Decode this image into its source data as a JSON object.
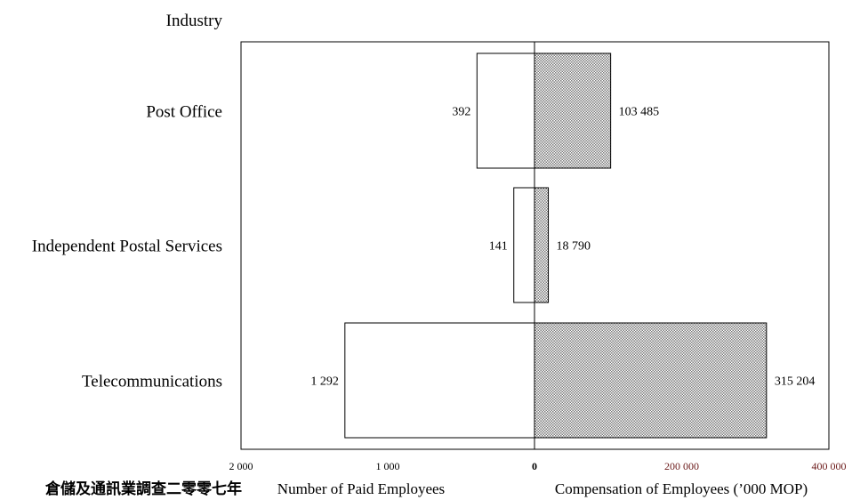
{
  "chart_data": {
    "type": "bar",
    "orientation": "horizontal-butterfly",
    "header_label": "Industry",
    "categories": [
      "Post Office",
      "Independent Postal Services",
      "Telecommunications"
    ],
    "left": {
      "label": "Number of Paid Employees",
      "values": [
        392,
        141,
        1292
      ],
      "value_labels": [
        "392",
        "141",
        "1 292"
      ],
      "ticks": [
        {
          "value": 2000,
          "label": "2 000"
        },
        {
          "value": 1000,
          "label": "1 000"
        },
        {
          "value": 0,
          "label": "0"
        }
      ],
      "range": [
        0,
        2000
      ],
      "fill": "#ffffff"
    },
    "right": {
      "label": "Compensation of Employees (’000 MOP)",
      "values": [
        103485,
        18790,
        315204
      ],
      "value_labels": [
        "103 485",
        "18 790",
        "315 204"
      ],
      "ticks": [
        {
          "value": 200000,
          "label": "200 000"
        },
        {
          "value": 400000,
          "label": "400 000"
        }
      ],
      "range": [
        0,
        400000
      ],
      "fill": "#c8c8c8",
      "tick_color": "#6b1a1a"
    },
    "footer_text": "倉儲及通訊業調查二零零七年"
  }
}
